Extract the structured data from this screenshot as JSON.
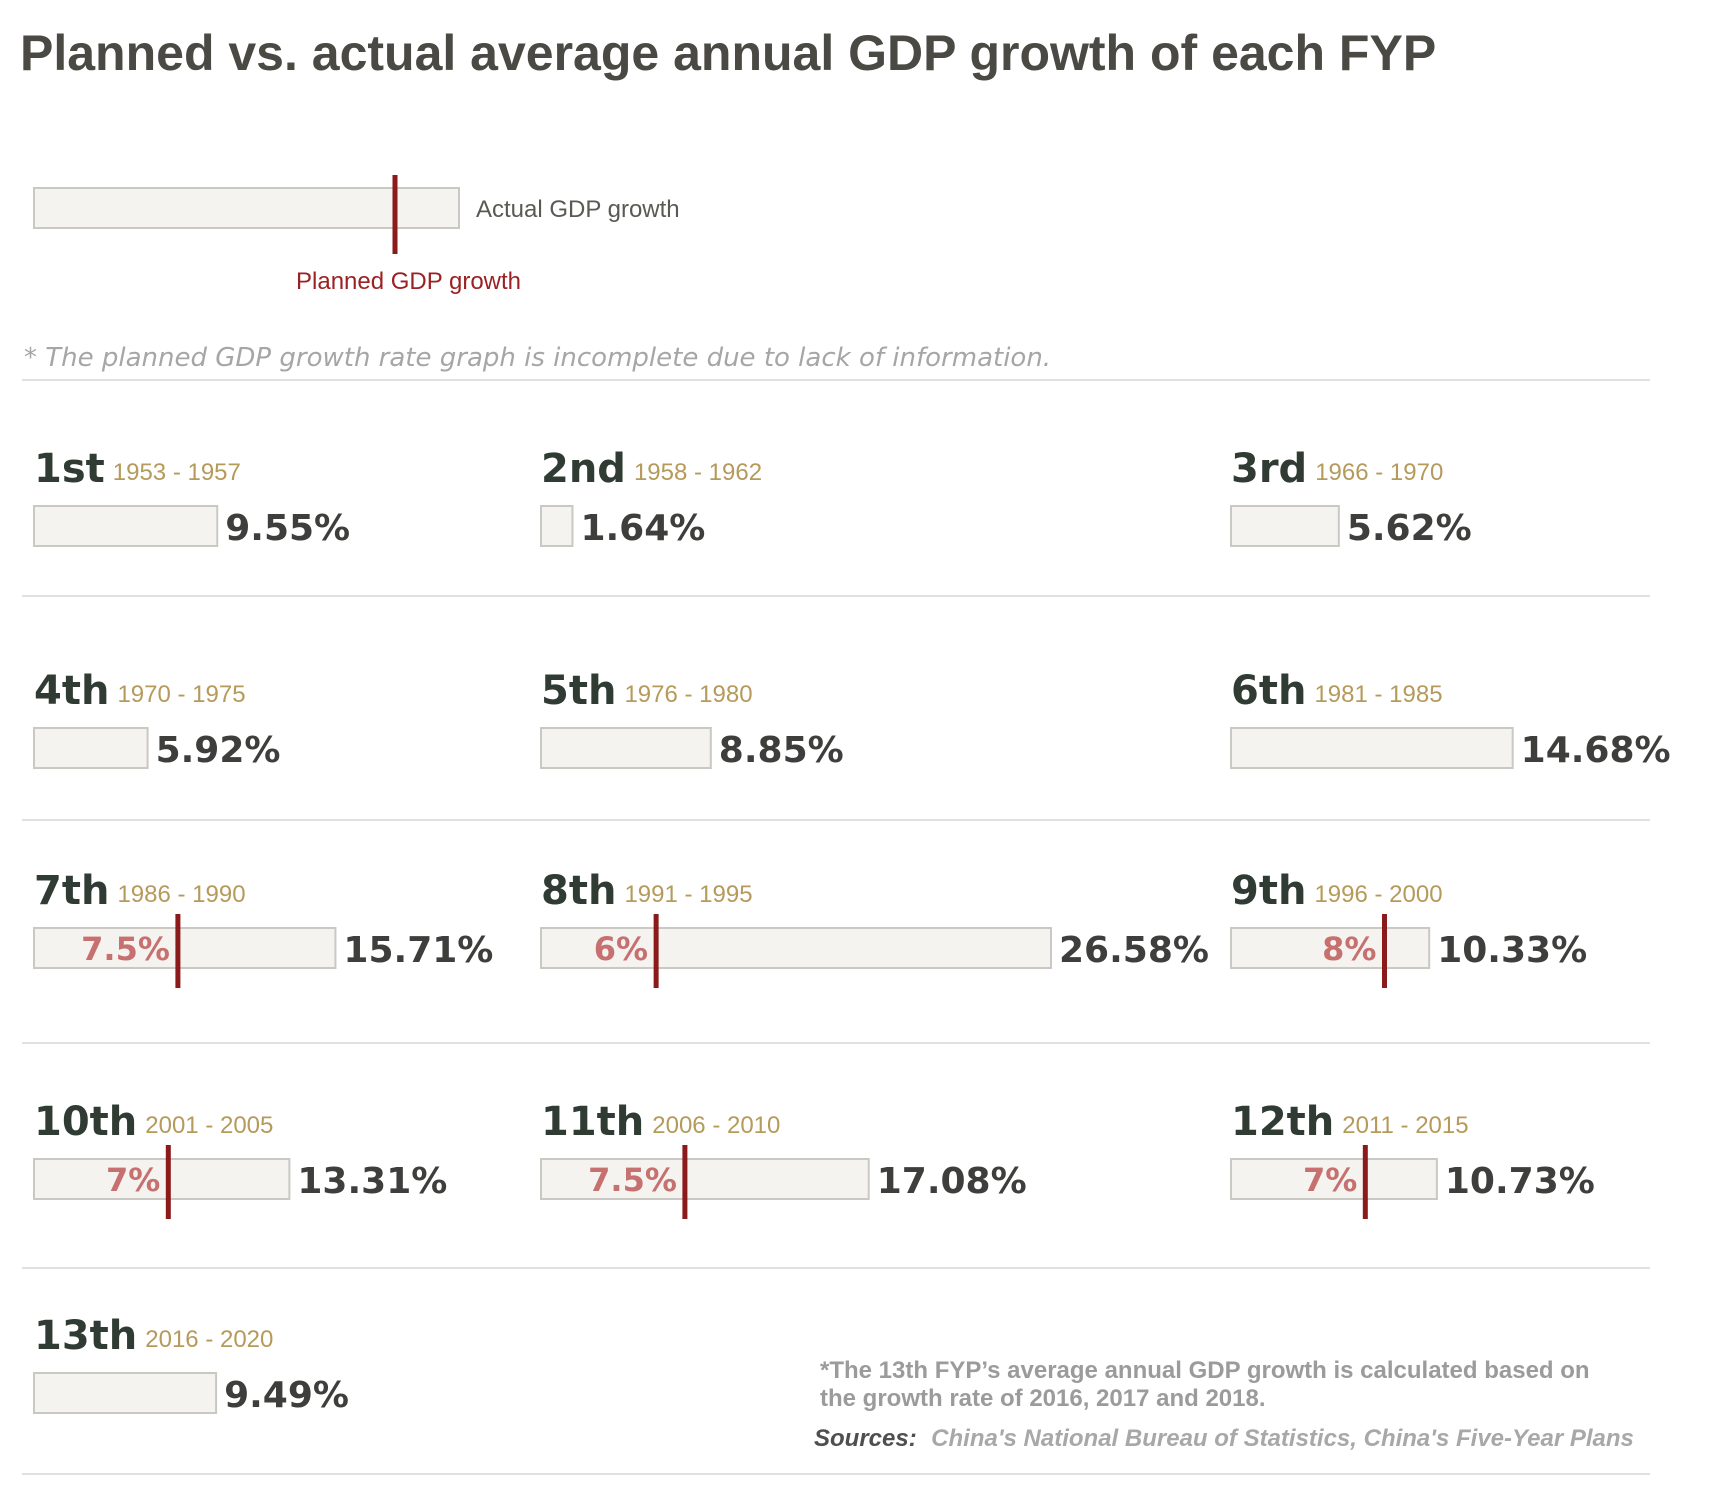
{
  "chart_data": {
    "type": "bar",
    "title": "Planned vs. actual average annual GDP growth of each FYP",
    "legend": {
      "actual_label": "Actual GDP growth",
      "planned_label": "Planned GDP growth"
    },
    "note": "* The planned GDP growth rate graph is incomplete due to lack of information.",
    "value_max": 26.58,
    "series": [
      {
        "name": "Actual GDP growth",
        "values": [
          9.55,
          1.64,
          5.62,
          5.92,
          8.85,
          14.68,
          15.71,
          26.58,
          10.33,
          13.31,
          17.08,
          10.73,
          9.49
        ]
      },
      {
        "name": "Planned GDP growth",
        "values": [
          null,
          null,
          null,
          null,
          null,
          null,
          7.5,
          6,
          8,
          7,
          7.5,
          7,
          null
        ]
      }
    ],
    "plans": [
      {
        "name": "1st",
        "years": "1953 - 1957",
        "actual": 9.55,
        "actual_label": "9.55%",
        "planned": null,
        "planned_label": ""
      },
      {
        "name": "2nd",
        "years": "1958 - 1962",
        "actual": 1.64,
        "actual_label": "1.64%",
        "planned": null,
        "planned_label": ""
      },
      {
        "name": "3rd",
        "years": "1966 - 1970",
        "actual": 5.62,
        "actual_label": "5.62%",
        "planned": null,
        "planned_label": ""
      },
      {
        "name": "4th",
        "years": "1970 - 1975",
        "actual": 5.92,
        "actual_label": "5.92%",
        "planned": null,
        "planned_label": ""
      },
      {
        "name": "5th",
        "years": "1976 - 1980",
        "actual": 8.85,
        "actual_label": "8.85%",
        "planned": null,
        "planned_label": ""
      },
      {
        "name": "6th",
        "years": "1981 - 1985",
        "actual": 14.68,
        "actual_label": "14.68%",
        "planned": null,
        "planned_label": ""
      },
      {
        "name": "7th",
        "years": "1986 - 1990",
        "actual": 15.71,
        "actual_label": "15.71%",
        "planned": 7.5,
        "planned_label": "7.5%"
      },
      {
        "name": "8th",
        "years": "1991 - 1995",
        "actual": 26.58,
        "actual_label": "26.58%",
        "planned": 6,
        "planned_label": "6%"
      },
      {
        "name": "9th",
        "years": "1996 - 2000",
        "actual": 10.33,
        "actual_label": "10.33%",
        "planned": 8,
        "planned_label": "8%"
      },
      {
        "name": "10th",
        "years": "2001 - 2005",
        "actual": 13.31,
        "actual_label": "13.31%",
        "planned": 7,
        "planned_label": "7%"
      },
      {
        "name": "11th",
        "years": "2006 - 2010",
        "actual": 17.08,
        "actual_label": "17.08%",
        "planned": 7.5,
        "planned_label": "7.5%"
      },
      {
        "name": "12th",
        "years": "2011 - 2015",
        "actual": 10.73,
        "actual_label": "10.73%",
        "planned": 7,
        "planned_label": "7%"
      },
      {
        "name": "13th",
        "years": "2016 - 2020",
        "actual": 9.49,
        "actual_label": "9.49%",
        "planned": null,
        "planned_label": ""
      }
    ],
    "footnote": [
      "*The 13th FYP’s average annual GDP growth is calculated based on",
      "the growth rate of 2016, 2017 and 2018."
    ],
    "sources_label": "Sources:",
    "sources_text": "China's National Bureau of Statistics, China's Five-Year Plans",
    "colors": {
      "bar_fill": "#f4f3ef",
      "bar_stroke": "#c9c8c3",
      "planned": "#8b1a1a",
      "planned_text": "#c67070",
      "years_text": "#b59a5b",
      "plan_name_text": "#2f3b33"
    }
  }
}
